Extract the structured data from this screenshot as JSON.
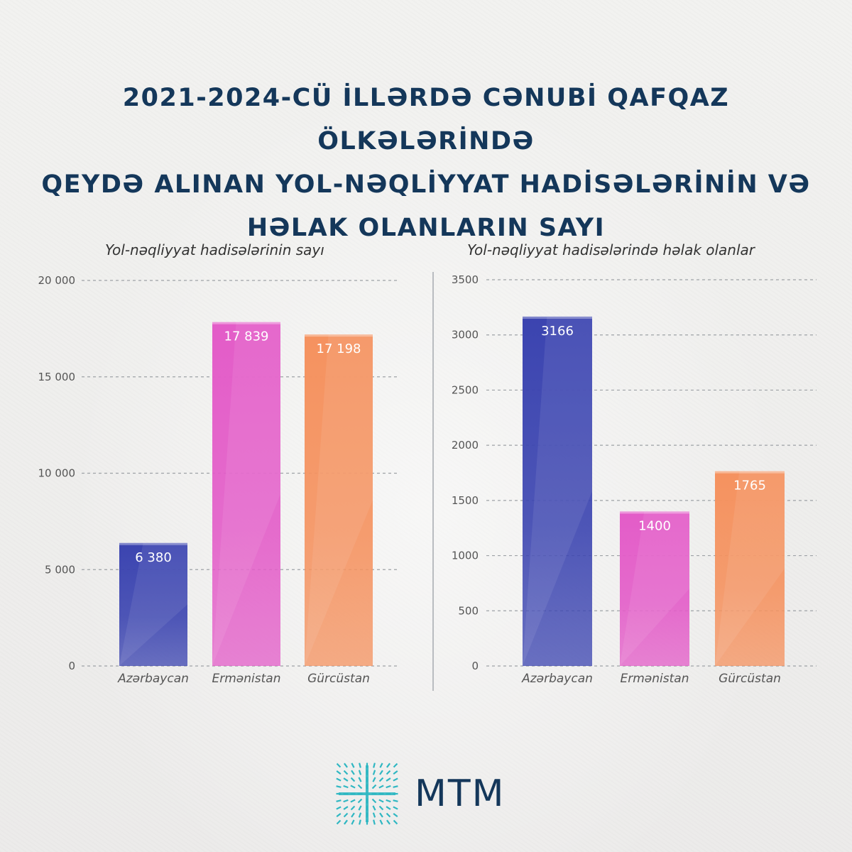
{
  "title": {
    "line1": "2021-2024-CÜ İLLƏRDƏ CƏNUBİ QAFQAZ ÖLKƏLƏRİNDƏ",
    "line2": "QEYDƏ ALINAN YOL-NƏQLİYYAT HADİSƏLƏRİNİN VƏ",
    "line3": "HƏLAK OLANLARIN SAYI"
  },
  "colors": {
    "title": "#14375a",
    "azerbaijan": "#3b44b0",
    "armenia": "#e35cc8",
    "georgia": "#f5925f",
    "logo": "#2fb7c2"
  },
  "logo": {
    "text": "MTM",
    "icon": "mtm-starburst-logo"
  },
  "chart_data": [
    {
      "type": "bar",
      "title": "Yol-nəqliyyat hadisələrinin sayı",
      "categories": [
        "Azərbaycan",
        "Ermənistan",
        "Gürcüstan"
      ],
      "values": [
        6380,
        17839,
        17198
      ],
      "value_labels": [
        "6 380",
        "17 839",
        "17 198"
      ],
      "yticks": [
        0,
        5000,
        10000,
        15000,
        20000
      ],
      "ytick_labels": [
        "0",
        "5 000",
        "10 000",
        "15 000",
        "20 000"
      ],
      "ylim": [
        0,
        20000
      ],
      "grid": true
    },
    {
      "type": "bar",
      "title": "Yol-nəqliyyat hadisələrində həlak olanlar",
      "categories": [
        "Azərbaycan",
        "Ermənistan",
        "Gürcüstan"
      ],
      "values": [
        3166,
        1400,
        1765
      ],
      "value_labels": [
        "3166",
        "1400",
        "1765"
      ],
      "yticks": [
        0,
        500,
        1000,
        1500,
        2000,
        2500,
        3000,
        3500
      ],
      "ytick_labels": [
        "0",
        "500",
        "1000",
        "1500",
        "2000",
        "2500",
        "3000",
        "3500"
      ],
      "ylim": [
        0,
        3500
      ],
      "grid": true
    }
  ]
}
